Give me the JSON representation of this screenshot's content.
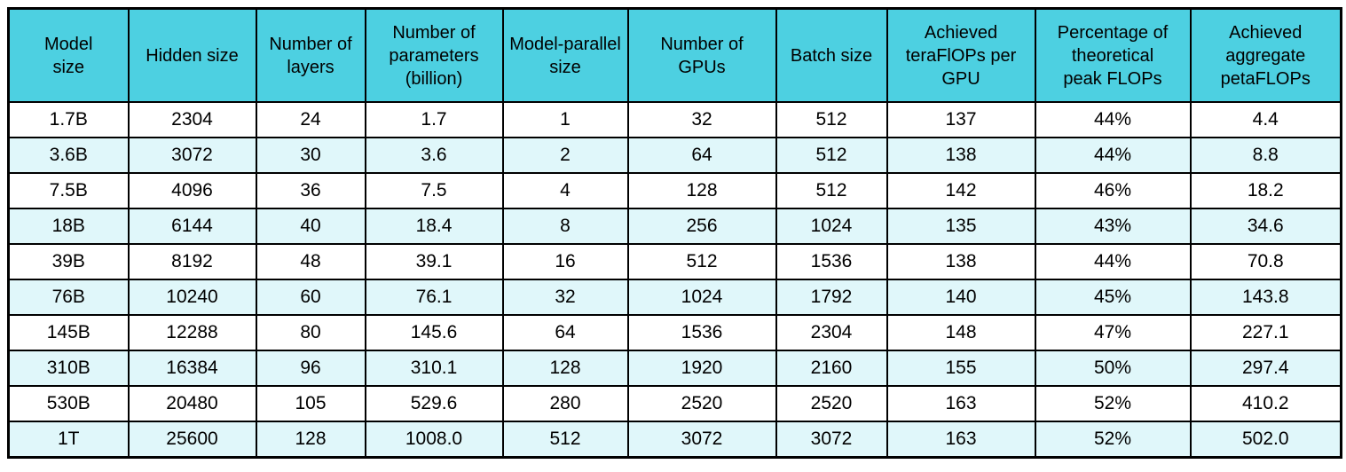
{
  "chart_data": {
    "type": "table",
    "columns": [
      "Model\nsize",
      "Hidden size",
      "Number of\nlayers",
      "Number of\nparameters\n(billion)",
      "Model-parallel\nsize",
      "Number of\nGPUs",
      "Batch size",
      "Achieved\nteraFlOPs per\nGPU",
      "Percentage of\ntheoretical\npeak FLOPs",
      "Achieved\naggregate\npetaFLOPs"
    ],
    "rows": [
      [
        "1.7B",
        "2304",
        "24",
        "1.7",
        "1",
        "32",
        "512",
        "137",
        "44%",
        "4.4"
      ],
      [
        "3.6B",
        "3072",
        "30",
        "3.6",
        "2",
        "64",
        "512",
        "138",
        "44%",
        "8.8"
      ],
      [
        "7.5B",
        "4096",
        "36",
        "7.5",
        "4",
        "128",
        "512",
        "142",
        "46%",
        "18.2"
      ],
      [
        "18B",
        "6144",
        "40",
        "18.4",
        "8",
        "256",
        "1024",
        "135",
        "43%",
        "34.6"
      ],
      [
        "39B",
        "8192",
        "48",
        "39.1",
        "16",
        "512",
        "1536",
        "138",
        "44%",
        "70.8"
      ],
      [
        "76B",
        "10240",
        "60",
        "76.1",
        "32",
        "1024",
        "1792",
        "140",
        "45%",
        "143.8"
      ],
      [
        "145B",
        "12288",
        "80",
        "145.6",
        "64",
        "1536",
        "2304",
        "148",
        "47%",
        "227.1"
      ],
      [
        "310B",
        "16384",
        "96",
        "310.1",
        "128",
        "1920",
        "2160",
        "155",
        "50%",
        "297.4"
      ],
      [
        "530B",
        "20480",
        "105",
        "529.6",
        "280",
        "2520",
        "2520",
        "163",
        "52%",
        "410.2"
      ],
      [
        "1T",
        "25600",
        "128",
        "1008.0",
        "512",
        "3072",
        "3072",
        "163",
        "52%",
        "502.0"
      ]
    ],
    "colors": {
      "header_bg": "#4dd0e1",
      "row_alt_bg": "#e0f7fa",
      "row_bg": "#ffffff",
      "border": "#000000",
      "text": "#000000"
    },
    "layout": {
      "header_row": true,
      "striped": "even-rows-tinted",
      "cell_alignment": "center"
    }
  }
}
